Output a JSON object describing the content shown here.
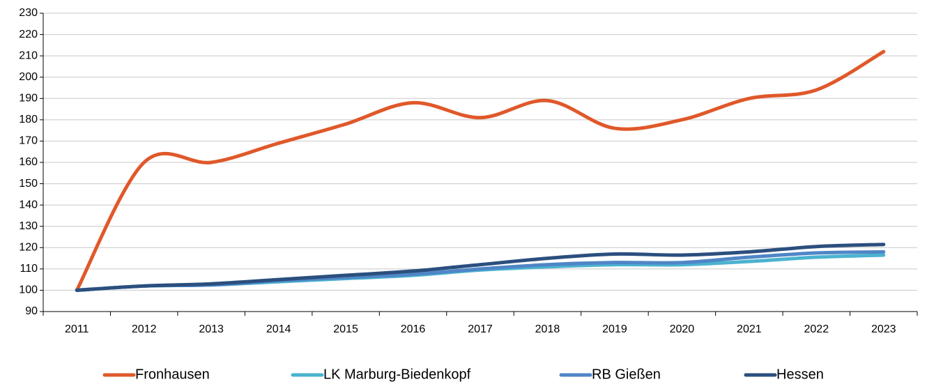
{
  "chart_data": {
    "type": "line",
    "categories": [
      "2011",
      "2012",
      "2013",
      "2014",
      "2015",
      "2016",
      "2017",
      "2018",
      "2019",
      "2020",
      "2021",
      "2022",
      "2023"
    ],
    "series": [
      {
        "name": "Fronhausen",
        "color": "#e0582a",
        "values": [
          100,
          160,
          160,
          169,
          178,
          188,
          181,
          189,
          176,
          180,
          190,
          194,
          212
        ]
      },
      {
        "name": "LK Marburg-Biedenkopf",
        "color": "#4bb3d0",
        "values": [
          100,
          102,
          102.5,
          104,
          105.5,
          107,
          109.5,
          111,
          112,
          112,
          113.5,
          115.5,
          116.5
        ]
      },
      {
        "name": "RB Gießen",
        "color": "#4f86c6",
        "values": [
          100,
          102,
          102.5,
          104.5,
          106,
          107.5,
          110,
          112,
          113,
          113,
          115.5,
          117.5,
          118
        ]
      },
      {
        "name": "Hessen",
        "color": "#2b4f7e",
        "values": [
          100,
          102,
          103,
          105,
          107,
          109,
          112,
          115,
          117,
          116.5,
          118,
          120.5,
          121.5
        ]
      }
    ],
    "ylim": [
      90,
      230
    ],
    "yticks": [
      90,
      100,
      110,
      120,
      130,
      140,
      150,
      160,
      170,
      180,
      190,
      200,
      210,
      220,
      230
    ],
    "grid": true,
    "smooth": true,
    "legend": "bottom"
  }
}
